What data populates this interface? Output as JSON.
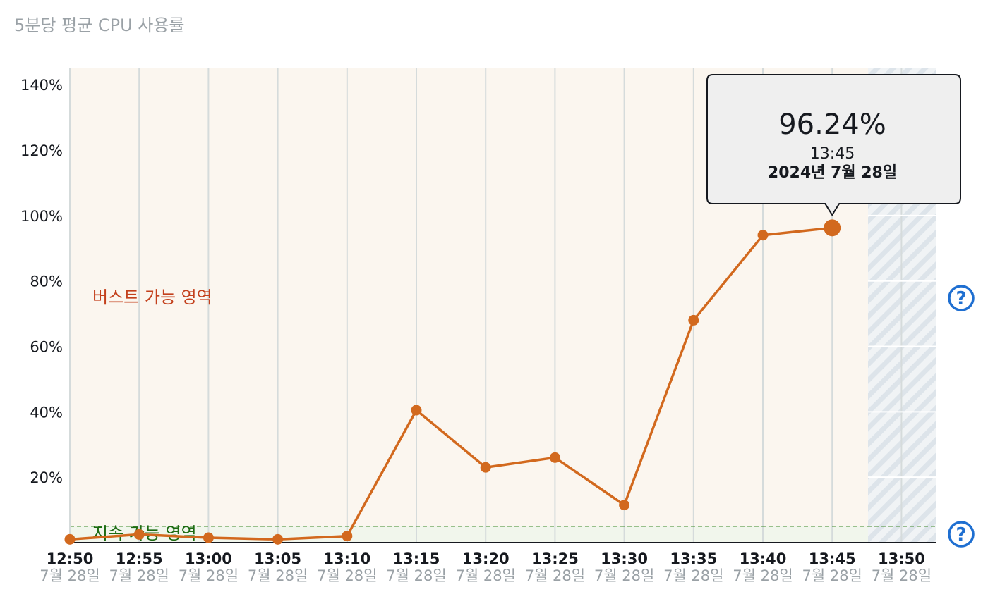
{
  "title": "5분당 평균 CPU 사용률",
  "chart_data": {
    "type": "line",
    "y_tick_labels": [
      "20%",
      "40%",
      "60%",
      "80%",
      "100%",
      "120%",
      "140%"
    ],
    "y_tick_values": [
      20,
      40,
      60,
      80,
      100,
      120,
      140
    ],
    "ylim": [
      0,
      145
    ],
    "x_tick_labels": [
      "12:50",
      "12:55",
      "13:00",
      "13:05",
      "13:10",
      "13:15",
      "13:20",
      "13:25",
      "13:30",
      "13:35",
      "13:40",
      "13:45",
      "13:50"
    ],
    "x_date_label": "7월 28일",
    "grid": true,
    "series": [
      {
        "color": "#d2691e",
        "x": [
          "12:50",
          "12:55",
          "13:00",
          "13:05",
          "13:10",
          "13:15",
          "13:20",
          "13:25",
          "13:30",
          "13:35",
          "13:40",
          "13:45"
        ],
        "values": [
          1,
          2.5,
          1.5,
          1,
          2,
          40.5,
          23,
          26,
          11.5,
          68,
          94,
          96.24
        ]
      }
    ],
    "threshold_value": 5,
    "zone_labels": {
      "burst": "버스트 가능 영역",
      "sustain": "지속 가능 영역"
    },
    "tooltip": {
      "value": "96.24%",
      "time": "13:45",
      "date": "2024년 7월 28일"
    },
    "colors": {
      "line": "#d2691e",
      "burst_zone": "#fbf6ef",
      "sustain_zone": "#f1f6ec",
      "threshold": "#3f8a2a",
      "help": "#1f6fd1"
    }
  },
  "help_icons": [
    "?",
    "?"
  ]
}
